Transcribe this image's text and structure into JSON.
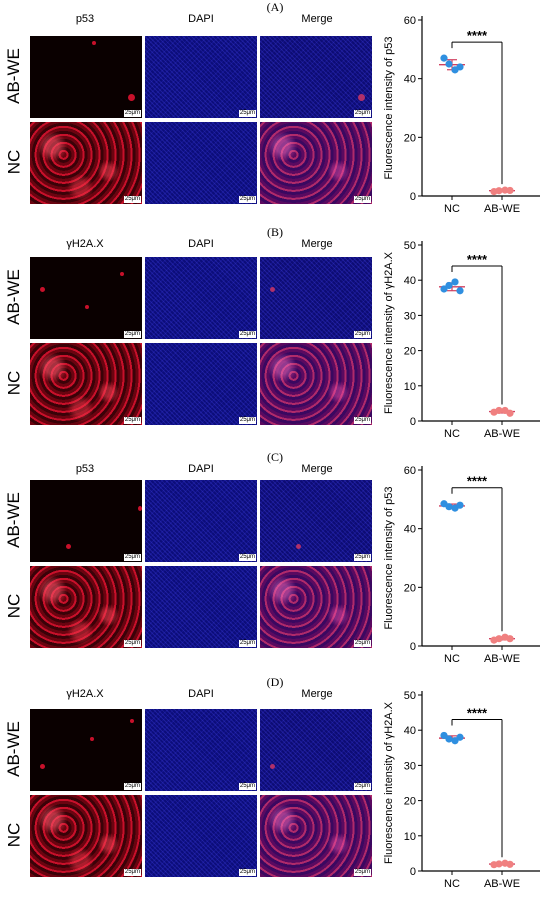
{
  "colors": {
    "nc": "#2f8fe0",
    "abwe": "#f08080",
    "error": "#d04060"
  },
  "panels": [
    {
      "label": "(A)",
      "columns": [
        "p53",
        "DAPI",
        "Merge"
      ],
      "rows": [
        "AB-WE",
        "NC"
      ],
      "scale_text": "25μm",
      "chart_data": {
        "type": "scatter",
        "ylabel": "Fluorescence intensity of p53",
        "categories": [
          "NC",
          "AB-WE"
        ],
        "ylim": [
          0,
          60
        ],
        "yticks": [
          0,
          20,
          40,
          60
        ],
        "series": [
          {
            "values": [
              47,
              45,
              43,
              44
            ]
          },
          {
            "values": [
              1.5,
              1.8,
              2.0,
              1.9
            ]
          }
        ],
        "significance": "****"
      }
    },
    {
      "label": "(B)",
      "columns": [
        "γH2A.X",
        "DAPI",
        "Merge"
      ],
      "rows": [
        "AB-WE",
        "NC"
      ],
      "scale_text": "25μm",
      "chart_data": {
        "type": "scatter",
        "ylabel": "Fluorescence intensity of γH2A.X",
        "categories": [
          "NC",
          "AB-WE"
        ],
        "ylim": [
          0,
          50
        ],
        "yticks": [
          0,
          10,
          20,
          30,
          40,
          50
        ],
        "series": [
          {
            "values": [
              37.5,
              38.5,
              39.5,
              37.0
            ]
          },
          {
            "values": [
              2.5,
              3.0,
              3.0,
              2.2
            ]
          }
        ],
        "significance": "****"
      }
    },
    {
      "label": "(C)",
      "columns": [
        "p53",
        "DAPI",
        "Merge"
      ],
      "rows": [
        "AB-WE",
        "NC"
      ],
      "scale_text": "25μm",
      "chart_data": {
        "type": "scatter",
        "ylabel": "Fluorescence intensity of p53",
        "categories": [
          "NC",
          "AB-WE"
        ],
        "ylim": [
          0,
          60
        ],
        "yticks": [
          0,
          20,
          40,
          60
        ],
        "series": [
          {
            "values": [
              48.5,
              47.5,
              47.0,
              48.0
            ]
          },
          {
            "values": [
              2.0,
              2.5,
              3.0,
              2.5
            ]
          }
        ],
        "significance": "****"
      }
    },
    {
      "label": "(D)",
      "columns": [
        "γH2A.X",
        "DAPI",
        "Merge"
      ],
      "rows": [
        "AB-WE",
        "NC"
      ],
      "scale_text": "25μm",
      "chart_data": {
        "type": "scatter",
        "ylabel": "Fluorescence intensity of γH2A.X",
        "categories": [
          "NC",
          "AB-WE"
        ],
        "ylim": [
          0,
          50
        ],
        "yticks": [
          0,
          10,
          20,
          30,
          40,
          50
        ],
        "series": [
          {
            "values": [
              38.5,
              37.5,
              37.0,
              38.0
            ]
          },
          {
            "values": [
              1.8,
              2.0,
              2.2,
              1.9
            ]
          }
        ],
        "significance": "****"
      }
    }
  ]
}
